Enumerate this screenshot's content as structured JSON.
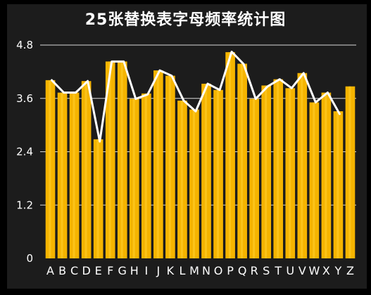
{
  "colors": {
    "background": "#1c1c1c",
    "outer_frame": "#000000",
    "bar": "#f5b400",
    "bar_highlight": "#ffcf2f",
    "line": "#ffffff",
    "grid": "#d9d9d9",
    "text": "#ffffff"
  },
  "chart_data": {
    "type": "bar",
    "overlay_type": "line",
    "title": "25张替换表字母频率统计图",
    "xlabel": "",
    "ylabel": "",
    "categories": [
      "A",
      "B",
      "C",
      "D",
      "E",
      "F",
      "G",
      "H",
      "I",
      "J",
      "K",
      "L",
      "M",
      "N",
      "O",
      "P",
      "Q",
      "R",
      "S",
      "T",
      "U",
      "V",
      "W",
      "X",
      "Y",
      "Z"
    ],
    "ylim": [
      0,
      4.8
    ],
    "yticks": [
      "0",
      "1.2",
      "2.4",
      "3.6",
      "4.8"
    ],
    "grid": "horizontal",
    "legend": "none",
    "series": [
      {
        "type": "bar",
        "values": [
          4.01,
          3.73,
          3.73,
          3.99,
          2.68,
          4.43,
          4.43,
          3.59,
          3.71,
          4.23,
          4.11,
          3.55,
          3.35,
          3.93,
          3.79,
          4.64,
          4.38,
          3.59,
          3.89,
          4.03,
          3.83,
          4.17,
          3.51,
          3.73,
          3.31,
          3.87
        ]
      },
      {
        "type": "line",
        "values": [
          4.01,
          3.73,
          3.73,
          3.99,
          2.63,
          4.43,
          4.43,
          3.59,
          3.69,
          4.23,
          4.11,
          3.55,
          3.31,
          3.93,
          3.79,
          4.65,
          4.37,
          3.59,
          3.87,
          4.03,
          3.83,
          4.17,
          3.51,
          3.73,
          3.25,
          3.55
        ]
      }
    ]
  }
}
